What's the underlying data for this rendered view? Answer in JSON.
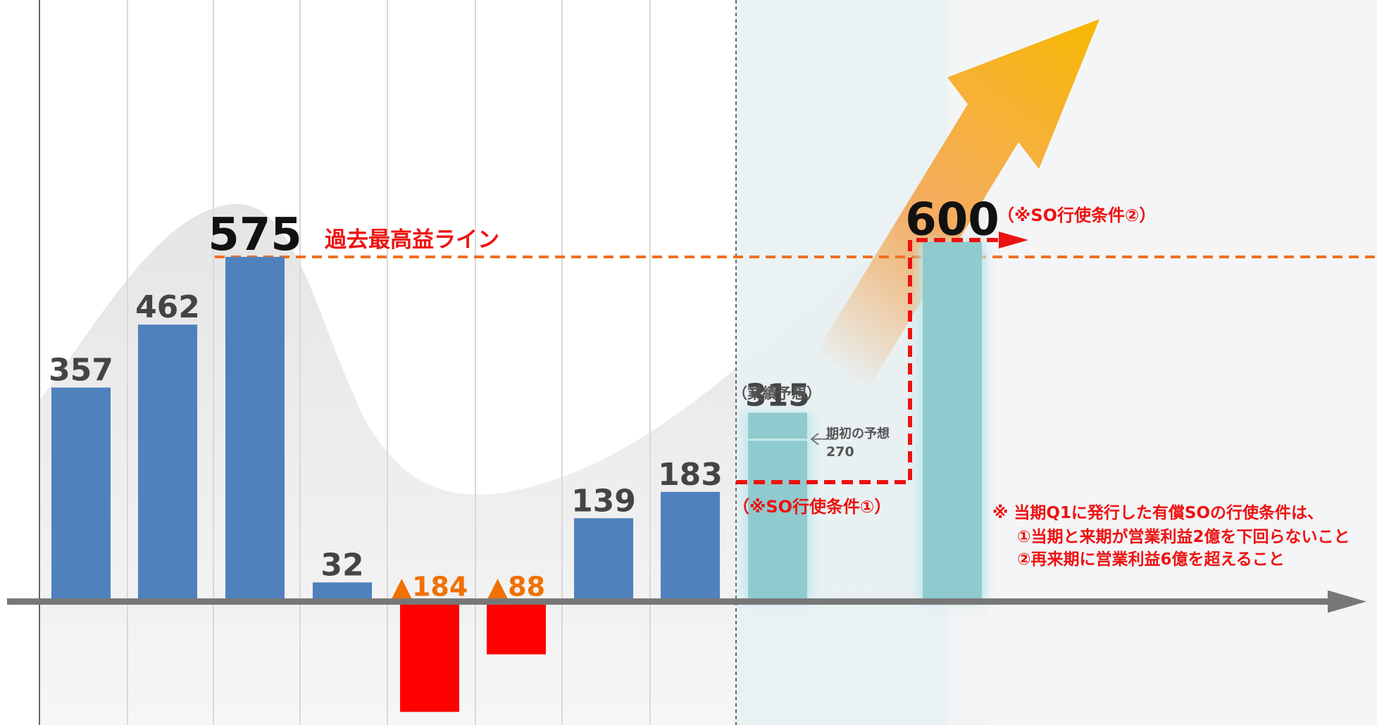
{
  "chart_data": {
    "type": "bar",
    "categories": [
      null,
      null,
      null,
      null,
      null,
      null,
      null,
      null,
      null,
      null
    ],
    "values": [
      357,
      462,
      575,
      32,
      -184,
      -88,
      139,
      183,
      315,
      600
    ],
    "value_labels": [
      "357",
      "462",
      "575",
      "32",
      "▲184",
      "▲88",
      "139",
      "183",
      "315",
      "600"
    ],
    "colors": [
      "#4f81bd",
      "#4f81bd",
      "#4f81bd",
      "#4f81bd",
      "#ff0000",
      "#ff0000",
      "#4f81bd",
      "#4f81bd",
      "#8cc8cc",
      "#8cc8cc"
    ],
    "ylim": [
      -200,
      1000
    ],
    "grid": true,
    "annotations": {
      "record_line": "過去最高益ライン",
      "condition2": "（※SO行使条件②）",
      "forecast": "（業績予想）",
      "condition1": "（※SO行使条件①）",
      "initial_forecast_label": "期初の予想",
      "initial_forecast": 270,
      "note": [
        "※ 当期Q1に発行した有償SOの行使条件は、",
        "①当期と来期が営業利益2億を下回らないこと",
        "②再来期に営業利益6億を超えること"
      ]
    }
  }
}
